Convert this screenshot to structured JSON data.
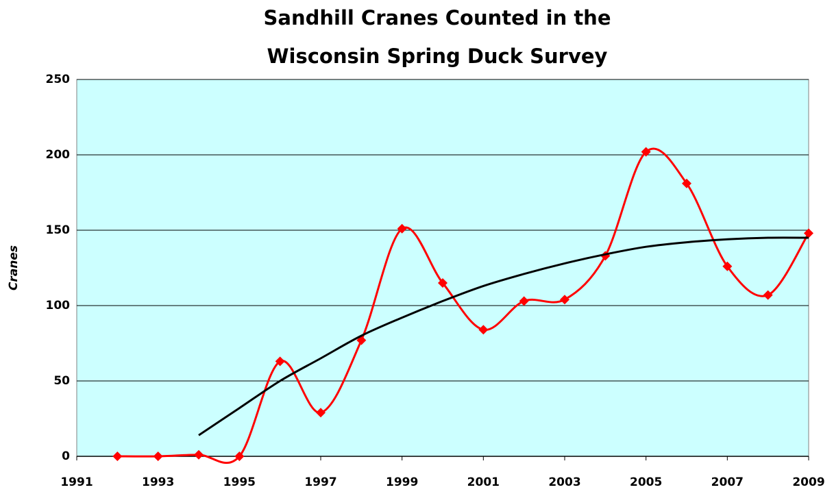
{
  "chart_data": {
    "type": "line",
    "title": [
      "Sandhill Cranes Counted in the",
      "Wisconsin Spring Duck Survey"
    ],
    "y_label": "Cranes",
    "x": [
      1992,
      1993,
      1994,
      1995,
      1996,
      1997,
      1998,
      1999,
      2000,
      2001,
      2002,
      2003,
      2004,
      2005,
      2006,
      2007,
      2008,
      2009
    ],
    "series": [
      {
        "color": "#ff0000",
        "smooth": true,
        "marker": "diamond",
        "values": [
          0,
          0,
          1,
          0,
          63,
          29,
          77,
          151,
          115,
          84,
          103,
          104,
          133,
          202,
          181,
          126,
          107,
          148
        ]
      },
      {
        "color": "#000000",
        "smooth": true,
        "marker": "none",
        "values": [
          null,
          null,
          14,
          32,
          50,
          65,
          80,
          92,
          103,
          113,
          121,
          128,
          134,
          139,
          142,
          144,
          145,
          145
        ]
      }
    ],
    "xlim": [
      1991,
      2009
    ],
    "xticks": [
      1991,
      1993,
      1995,
      1997,
      1999,
      2001,
      2003,
      2005,
      2007,
      2009
    ],
    "ylim": [
      0,
      250
    ],
    "yticks": [
      0,
      50,
      100,
      150,
      200,
      250
    ],
    "grid": true,
    "plot_background": "#ccffff"
  }
}
